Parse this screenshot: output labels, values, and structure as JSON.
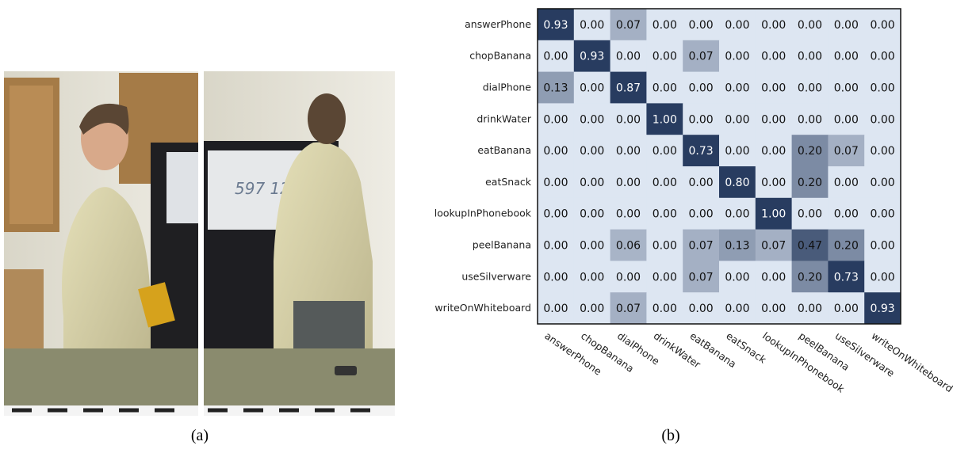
{
  "panel_a": {
    "caption": "(a)",
    "whiteboard_text": "597 12"
  },
  "panel_b": {
    "caption": "(b)",
    "row_labels": [
      "answerPhone",
      "chopBanana",
      "dialPhone",
      "drinkWater",
      "eatBanana",
      "eatSnack",
      "lookupInPhonebook",
      "peelBanana",
      "useSilverware",
      "writeOnWhiteboard"
    ],
    "column_labels": [
      "answerPhone",
      "chopBanana",
      "dialPhone",
      "drinkWater",
      "eatBanana",
      "eatSnack",
      "lookupInPhonebook",
      "peelBanana",
      "useSilverware",
      "writeOnWhiteboard"
    ],
    "cells": [
      [
        "0.93",
        "0.00",
        "0.07",
        "0.00",
        "0.00",
        "0.00",
        "0.00",
        "0.00",
        "0.00",
        "0.00"
      ],
      [
        "0.00",
        "0.93",
        "0.00",
        "0.00",
        "0.07",
        "0.00",
        "0.00",
        "0.00",
        "0.00",
        "0.00"
      ],
      [
        "0.13",
        "0.00",
        "0.87",
        "0.00",
        "0.00",
        "0.00",
        "0.00",
        "0.00",
        "0.00",
        "0.00"
      ],
      [
        "0.00",
        "0.00",
        "0.00",
        "1.00",
        "0.00",
        "0.00",
        "0.00",
        "0.00",
        "0.00",
        "0.00"
      ],
      [
        "0.00",
        "0.00",
        "0.00",
        "0.00",
        "0.73",
        "0.00",
        "0.00",
        "0.20",
        "0.07",
        "0.00"
      ],
      [
        "0.00",
        "0.00",
        "0.00",
        "0.00",
        "0.00",
        "0.80",
        "0.00",
        "0.20",
        "0.00",
        "0.00"
      ],
      [
        "0.00",
        "0.00",
        "0.00",
        "0.00",
        "0.00",
        "0.00",
        "1.00",
        "0.00",
        "0.00",
        "0.00"
      ],
      [
        "0.00",
        "0.00",
        "0.06",
        "0.00",
        "0.07",
        "0.13",
        "0.07",
        "0.47",
        "0.20",
        "0.00"
      ],
      [
        "0.00",
        "0.00",
        "0.00",
        "0.00",
        "0.07",
        "0.00",
        "0.00",
        "0.20",
        "0.73",
        "0.00"
      ],
      [
        "0.00",
        "0.00",
        "0.07",
        "0.00",
        "0.00",
        "0.00",
        "0.00",
        "0.00",
        "0.00",
        "0.93"
      ]
    ]
  }
}
